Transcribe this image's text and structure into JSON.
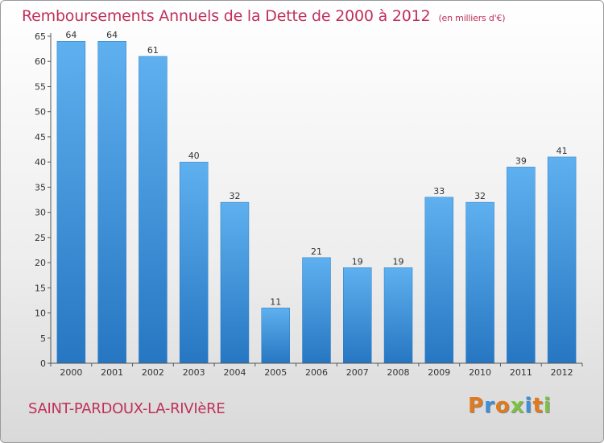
{
  "chart_data": {
    "type": "bar",
    "title": "Remboursements Annuels de la Dette de 2000 à 2012",
    "subtitle": "(en milliers d'€)",
    "categories": [
      "2000",
      "2001",
      "2002",
      "2003",
      "2004",
      "2005",
      "2006",
      "2007",
      "2008",
      "2009",
      "2010",
      "2011",
      "2012"
    ],
    "values": [
      64,
      64,
      61,
      40,
      32,
      11,
      21,
      19,
      19,
      33,
      32,
      39,
      41
    ],
    "ylim": [
      0,
      65
    ],
    "yticks": [
      0,
      5,
      10,
      15,
      20,
      25,
      30,
      35,
      40,
      45,
      50,
      55,
      60,
      65
    ],
    "grid": false,
    "legend": "none",
    "bar_color": "#3d8fd8"
  },
  "footer": {
    "commune": "SAINT-PARDOUX-LA-RIVIèRE"
  },
  "logo": {
    "letters": [
      {
        "char": "P",
        "color": "#e07a1e"
      },
      {
        "char": "r",
        "color": "#3d8fd8"
      },
      {
        "char": "o",
        "color": "#e07a1e"
      },
      {
        "char": "x",
        "color": "#7cc242"
      },
      {
        "char": "i",
        "color": "#3d8fd8"
      },
      {
        "char": "t",
        "color": "#e07a1e"
      },
      {
        "char": "i",
        "color": "#7cc242"
      }
    ]
  }
}
